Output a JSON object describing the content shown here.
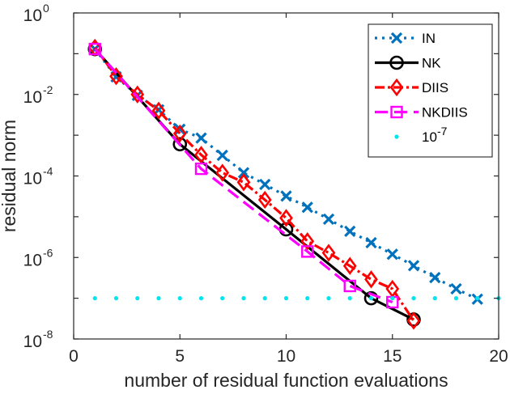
{
  "chart_data": {
    "type": "line",
    "title": "",
    "xlabel": "number of residual function evaluations",
    "ylabel": "residual norm",
    "xlim": [
      0,
      20
    ],
    "ylim": [
      1e-08,
      1
    ],
    "yscale": "log",
    "grid": false,
    "legend_position": "top-right",
    "x_ticks": [
      0,
      5,
      10,
      15,
      20
    ],
    "x_tick_labels": [
      "0",
      "5",
      "10",
      "15",
      "20"
    ],
    "y_ticks": [
      1e-08,
      1e-06,
      0.0001,
      0.01,
      1
    ],
    "y_tick_labels": [
      {
        "base": "10",
        "exp": "-8"
      },
      {
        "base": "10",
        "exp": "-6"
      },
      {
        "base": "10",
        "exp": "-4"
      },
      {
        "base": "10",
        "exp": "-2"
      },
      {
        "base": "10",
        "exp": "0"
      }
    ],
    "series": [
      {
        "name": "IN",
        "color": "#0072bd",
        "line_style": "dotted",
        "marker": "x",
        "x": [
          1,
          2,
          3,
          4,
          5,
          6,
          7,
          8,
          9,
          10,
          11,
          12,
          13,
          14,
          15,
          16,
          17,
          18,
          19
        ],
        "y": [
          0.13,
          0.027,
          0.0095,
          0.0042,
          0.0014,
          0.00085,
          0.00032,
          0.00012,
          6.2e-05,
          3.2e-05,
          1.7e-05,
          8.7e-06,
          4.4e-06,
          2.3e-06,
          1.2e-06,
          6.3e-07,
          3.2e-07,
          1.7e-07,
          9.5e-08
        ]
      },
      {
        "name": "NK",
        "color": "#000000",
        "line_style": "solid",
        "marker": "o",
        "x": [
          1,
          5,
          10,
          14,
          16
        ],
        "y": [
          0.13,
          0.0006,
          4.9e-06,
          1e-07,
          3e-08
        ]
      },
      {
        "name": "DIIS",
        "color": "#ff0000",
        "line_style": "dashdot",
        "marker": "diamond",
        "x": [
          1,
          2,
          3,
          4,
          5,
          6,
          7,
          8,
          9,
          10,
          11,
          12,
          13,
          14,
          15,
          16
        ],
        "y": [
          0.14,
          0.028,
          0.01,
          0.004,
          0.0011,
          0.00033,
          0.00012,
          7e-05,
          2.6e-05,
          9.3e-06,
          2.5e-06,
          1.3e-06,
          6.2e-07,
          2.9e-07,
          1.7e-07,
          2.8e-08
        ]
      },
      {
        "name": "NKDIIS",
        "color": "#ff00ff",
        "line_style": "dashed",
        "marker": "square",
        "x": [
          1,
          6,
          11,
          13,
          15
        ],
        "y": [
          0.13,
          0.00015,
          1.4e-06,
          2e-07,
          8e-08
        ]
      },
      {
        "name": "10",
        "name_exp": "-7",
        "color": "#00e5ee",
        "line_style": "none",
        "marker": "dot",
        "x": [
          1,
          2,
          3,
          4,
          5,
          6,
          7,
          8,
          9,
          10,
          11,
          12,
          13,
          14,
          15,
          16,
          17,
          18,
          19,
          20
        ],
        "y": [
          1e-07,
          1e-07,
          1e-07,
          1e-07,
          1e-07,
          1e-07,
          1e-07,
          1e-07,
          1e-07,
          1e-07,
          1e-07,
          1e-07,
          1e-07,
          1e-07,
          1e-07,
          1e-07,
          1e-07,
          1e-07,
          1e-07,
          1e-07
        ]
      }
    ]
  }
}
